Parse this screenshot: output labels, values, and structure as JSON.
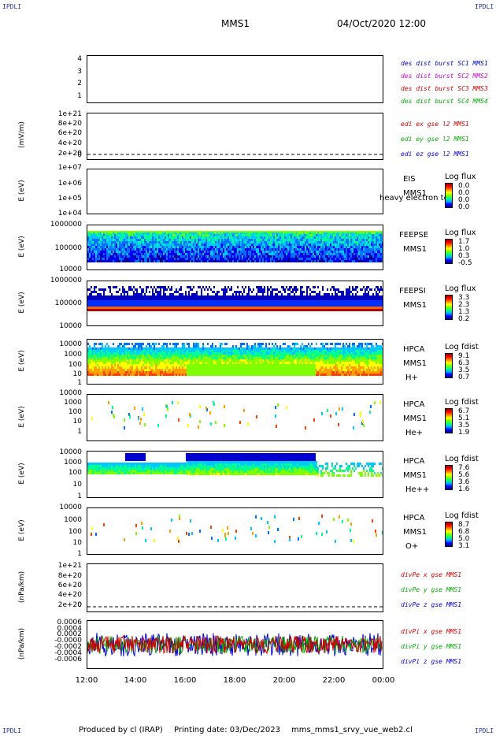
{
  "corner_label": "IPDLI",
  "header": {
    "mission": "MMS1",
    "datetime": "04/Oct/2020 12:00"
  },
  "footer": {
    "producer": "Produced by cl (IRAP)",
    "printing_date": "Printing date: 03/Dec/2023",
    "filename": "mms_mms1_srvy_vue_web2.cl"
  },
  "chart_data": [
    {
      "type": "line",
      "ylabel": "",
      "yticks": [
        "4",
        "3",
        "2",
        "1"
      ],
      "series": [
        {
          "name": "des dist burst SC1 MMS1",
          "color": "#0000cc"
        },
        {
          "name": "des dist burst SC2 MMS2",
          "color": "#cc00cc"
        },
        {
          "name": "des dist burst SC3 MMS3",
          "color": "#cc0000"
        },
        {
          "name": "des dist burst SC4 MMS4",
          "color": "#00aa00"
        }
      ]
    },
    {
      "type": "line",
      "ylabel": "(mV/m)",
      "yticks": [
        "1e+21",
        "8e+20",
        "6e+20",
        "4e+20",
        "2e+20",
        "0"
      ],
      "series": [
        {
          "name": "edi ex gse l2 MMS1",
          "color": "#cc0000"
        },
        {
          "name": "edi ey gse l2 MMS1",
          "color": "#00aa00"
        },
        {
          "name": "edi ez gse l2 MMS1",
          "color": "#0000cc"
        }
      ]
    },
    {
      "type": "heatmap",
      "ylabel": "E (eV)",
      "yticks": [
        "1e+07",
        "1e+06",
        "1e+05",
        "1e+04"
      ],
      "instrument": [
        "EIS",
        "MMS1"
      ],
      "overlay": "heavy electron tof",
      "colorbar_title": "Log flux",
      "colorbar_values": [
        "0.0",
        "0.0",
        "0.0",
        "0.0"
      ]
    },
    {
      "type": "heatmap",
      "ylabel": "E (eV)",
      "yticks": [
        "1000000",
        "100000",
        "10000"
      ],
      "instrument": [
        "FEEPSE",
        "MMS1"
      ],
      "colorbar_title": "Log flux",
      "colorbar_values": [
        "1.7",
        "1.0",
        "0.3",
        "-0.5"
      ]
    },
    {
      "type": "heatmap",
      "ylabel": "E (eV)",
      "yticks": [
        "1000000",
        "100000",
        "10000"
      ],
      "instrument": [
        "FEEPSI",
        "MMS1"
      ],
      "colorbar_title": "Log flux",
      "colorbar_values": [
        "3.3",
        "2.3",
        "1.3",
        "0.2"
      ]
    },
    {
      "type": "heatmap",
      "ylabel": "E (eV)",
      "yticks": [
        "10000",
        "1000",
        "100",
        "10",
        "1"
      ],
      "instrument": [
        "HPCA",
        "MMS1",
        "H+"
      ],
      "colorbar_title": "Log fdist",
      "colorbar_values": [
        "9.1",
        "6.3",
        "3.5",
        "0.7"
      ]
    },
    {
      "type": "heatmap",
      "ylabel": "E (eV)",
      "yticks": [
        "10000",
        "1000",
        "100",
        "10",
        "1"
      ],
      "instrument": [
        "HPCA",
        "MMS1",
        "He+"
      ],
      "colorbar_title": "Log fdist",
      "colorbar_values": [
        "6.7",
        "5.1",
        "3.5",
        "1.9"
      ]
    },
    {
      "type": "heatmap",
      "ylabel": "E (eV)",
      "yticks": [
        "10000",
        "1000",
        "100",
        "10",
        "1"
      ],
      "instrument": [
        "HPCA",
        "MMS1",
        "He++"
      ],
      "colorbar_title": "Log fdist",
      "colorbar_values": [
        "7.6",
        "5.6",
        "3.6",
        "1.6"
      ]
    },
    {
      "type": "heatmap",
      "ylabel": "E (eV)",
      "yticks": [
        "10000",
        "1000",
        "100",
        "10",
        "1"
      ],
      "instrument": [
        "HPCA",
        "MMS1",
        "O+"
      ],
      "colorbar_title": "Log fdist",
      "colorbar_values": [
        "8.7",
        "6.8",
        "5.0",
        "3.1"
      ]
    },
    {
      "type": "line",
      "ylabel": "(nPa/km)",
      "yticks": [
        "1e+21",
        "8e+20",
        "6e+20",
        "4e+20",
        "2e+20",
        "0"
      ],
      "series": [
        {
          "name": "divPe x gse MMS1",
          "color": "#cc0000"
        },
        {
          "name": "divPe y gse MMS1",
          "color": "#00aa00"
        },
        {
          "name": "divPe z gse MMS1",
          "color": "#0000cc"
        }
      ]
    },
    {
      "type": "line",
      "ylabel": "(nPa/km)",
      "yticks": [
        "0.0006",
        "0.0004",
        "0.0002",
        "-0.0000",
        "-0.0002",
        "-0.0004",
        "-0.0006"
      ],
      "series": [
        {
          "name": "divPi x gse MMS1",
          "color": "#cc0000"
        },
        {
          "name": "divPi y gse MMS1",
          "color": "#00aa00"
        },
        {
          "name": "divPi z gse MMS1",
          "color": "#0000cc"
        }
      ]
    }
  ],
  "x_axis": {
    "ticks": [
      "12:00",
      "14:00",
      "16:00",
      "18:00",
      "20:00",
      "22:00",
      "00:00"
    ],
    "range": [
      "12:00",
      "00:00"
    ]
  }
}
